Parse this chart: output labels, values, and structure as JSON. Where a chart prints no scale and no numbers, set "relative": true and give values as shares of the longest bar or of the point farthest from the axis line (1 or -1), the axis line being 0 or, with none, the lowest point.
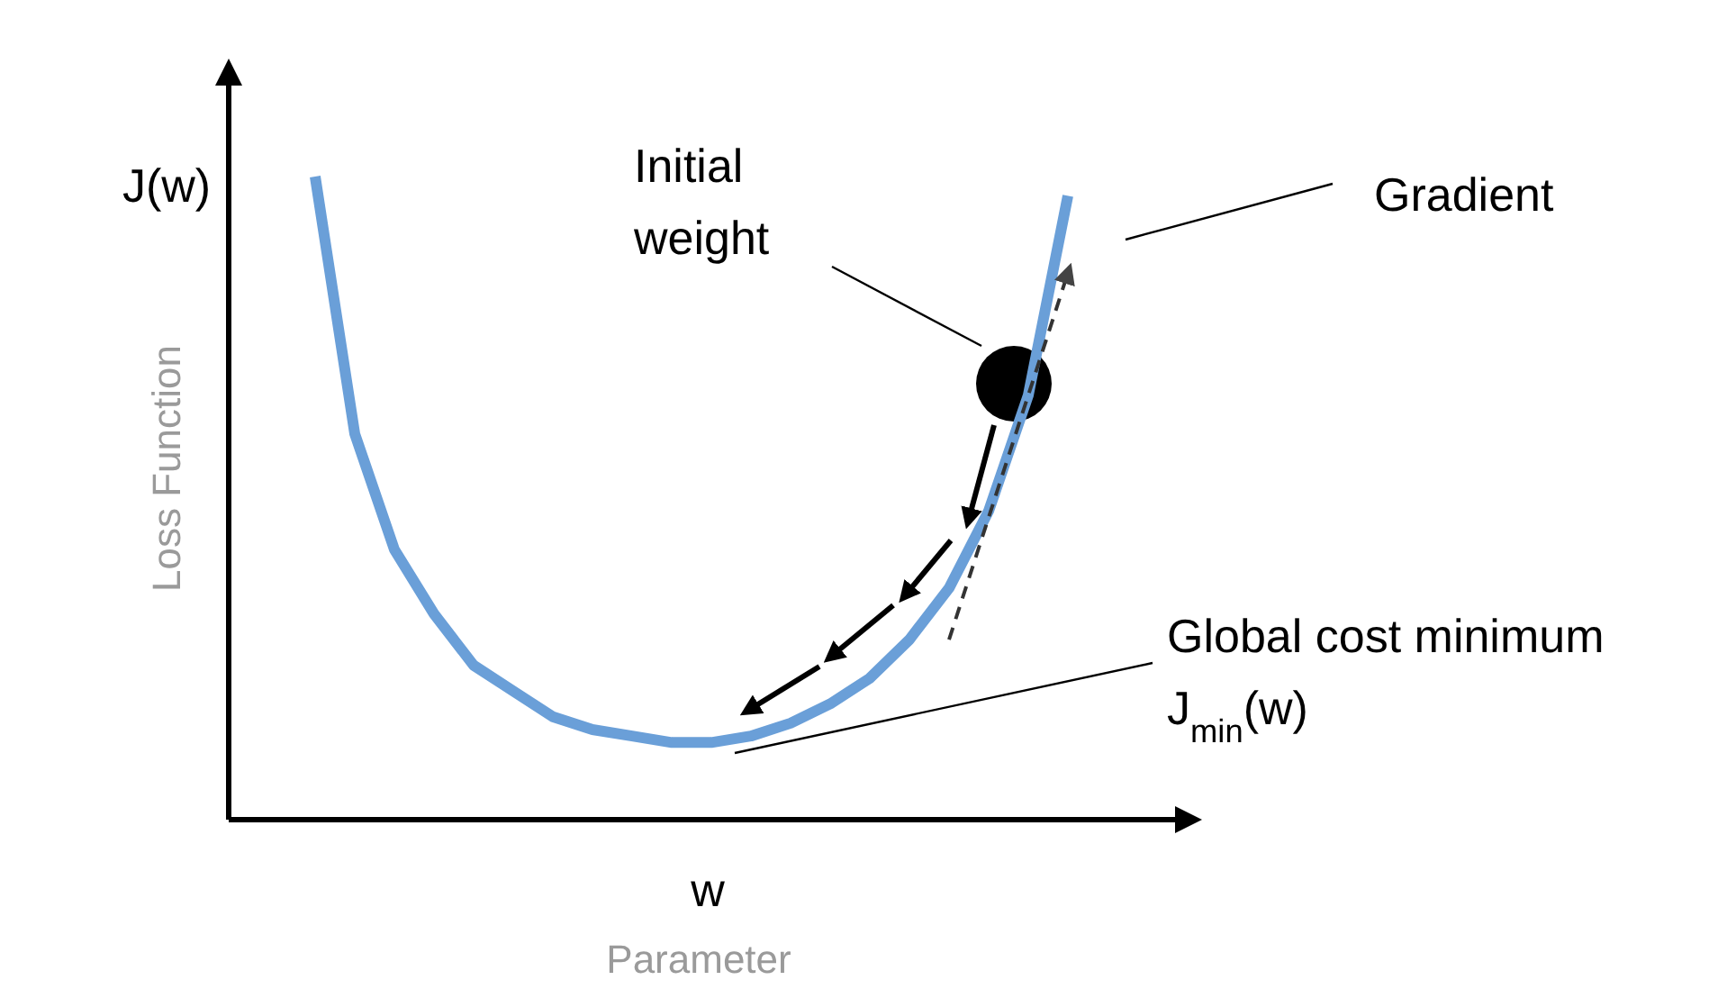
{
  "chart_data": {
    "type": "line",
    "relative": true,
    "xlabel": "Parameter",
    "ylabel": "Loss Function",
    "categories": [
      null,
      null,
      null,
      null,
      null,
      null,
      null,
      null,
      null,
      null,
      null,
      null,
      null,
      null,
      null,
      null,
      null,
      null,
      null,
      null,
      null
    ],
    "series": [
      {
        "color": "#6a9fd8",
        "values": [
          1.0,
          0.6,
          0.42,
          0.32,
          0.24,
          0.2,
          0.16,
          0.14,
          0.13,
          0.12,
          0.12,
          0.13,
          0.15,
          0.18,
          0.22,
          0.28,
          0.36,
          0.48,
          0.66,
          0.97,
          null
        ]
      },
      {
        "color": "#333333",
        "line_style": "dashed",
        "values": [
          null,
          null,
          null,
          null,
          null,
          null,
          null,
          null,
          null,
          null,
          null,
          null,
          null,
          null,
          null,
          null,
          0.28,
          0.47,
          0.66,
          0.85,
          null
        ]
      }
    ],
    "annotations": [
      "J(w)",
      "w",
      "Initial weight",
      "Gradient",
      "Global cost minimum",
      "J$_{min}$(w)"
    ]
  }
}
